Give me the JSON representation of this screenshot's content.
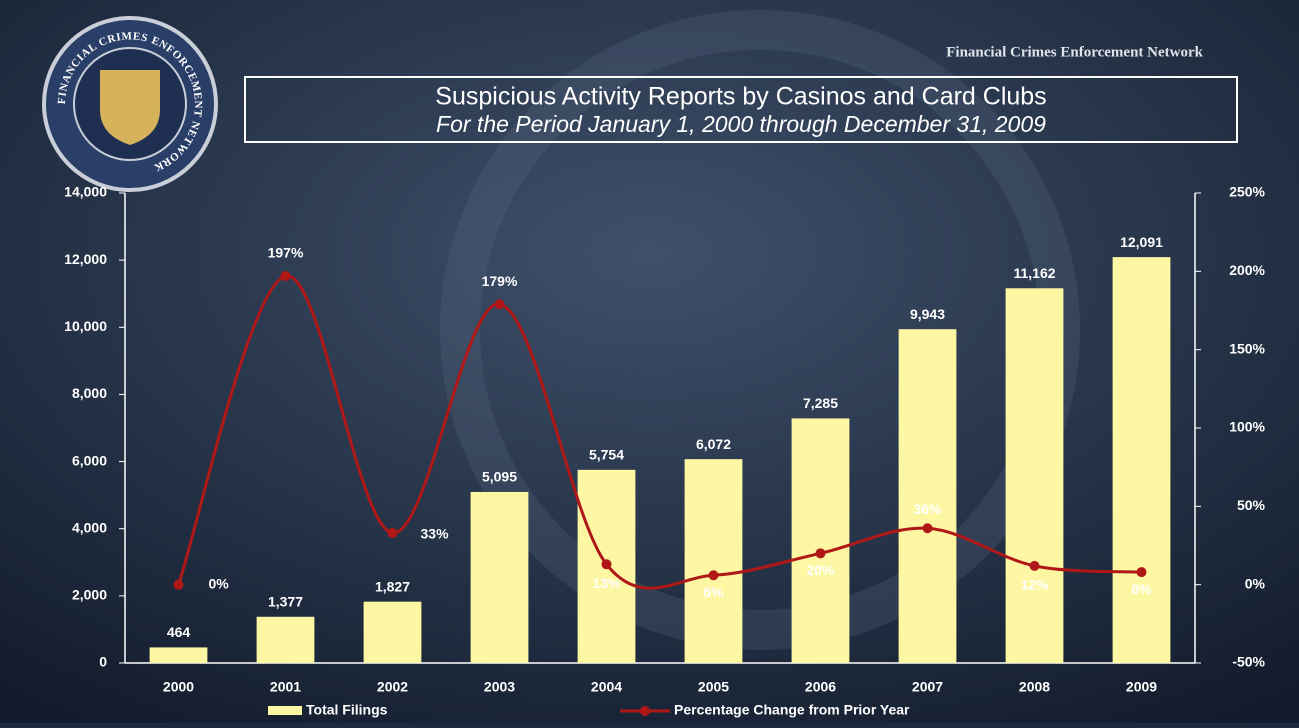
{
  "header": "Financial Crimes Enforcement Network",
  "logo_text": "FINANCIAL CRIMES ENFORCEMENT NETWORK",
  "chart_data": {
    "type": "bar-line",
    "title": "Suspicious Activity Reports by Casinos and Card Clubs",
    "subtitle": "For the Period January 1, 2000 through December 31, 2009",
    "categories": [
      "2000",
      "2001",
      "2002",
      "2003",
      "2004",
      "2005",
      "2006",
      "2007",
      "2008",
      "2009"
    ],
    "series": [
      {
        "name": "Total Filings",
        "color": "#fdf6a3",
        "type": "bar",
        "values": [
          464,
          1377,
          1827,
          5095,
          5754,
          6072,
          7285,
          9943,
          11162,
          12091
        ],
        "value_labels": [
          "464",
          "1,377",
          "1,827",
          "5,095",
          "5,754",
          "6,072",
          "7,285",
          "9,943",
          "11,162",
          "12,091"
        ]
      },
      {
        "name": "Percentage Change from Prior Year",
        "color": "#b01818",
        "type": "line",
        "axis": "y2",
        "values": [
          0,
          197,
          33,
          179,
          13,
          6,
          20,
          36,
          12,
          8
        ],
        "value_labels": [
          "0%",
          "197%",
          "33%",
          "179%",
          "13%",
          "6%",
          "20%",
          "36%",
          "12%",
          "8%"
        ]
      }
    ],
    "ylim": [
      0,
      14000
    ],
    "yticks": [
      0,
      {
        "value": 2000,
        "label": "2,000"
      },
      {
        "value": 4000,
        "label": "4,000"
      },
      {
        "value": 6000,
        "label": "6,000"
      },
      {
        "value": 8000,
        "label": "8,000"
      },
      {
        "value": 10000,
        "label": "10,000"
      },
      {
        "value": 12000,
        "label": "12,000"
      },
      {
        "value": 14000,
        "label": "14,000"
      }
    ],
    "y2lim": [
      -50,
      250
    ],
    "y2ticks": [
      {
        "value": -50,
        "label": "-50%"
      },
      {
        "value": 0,
        "label": "0%"
      },
      {
        "value": 50,
        "label": "50%"
      },
      {
        "value": 100,
        "label": "100%"
      },
      {
        "value": 150,
        "label": "150%"
      },
      {
        "value": 200,
        "label": "200%"
      },
      {
        "value": 250,
        "label": "250%"
      }
    ],
    "legend": "bottom"
  }
}
